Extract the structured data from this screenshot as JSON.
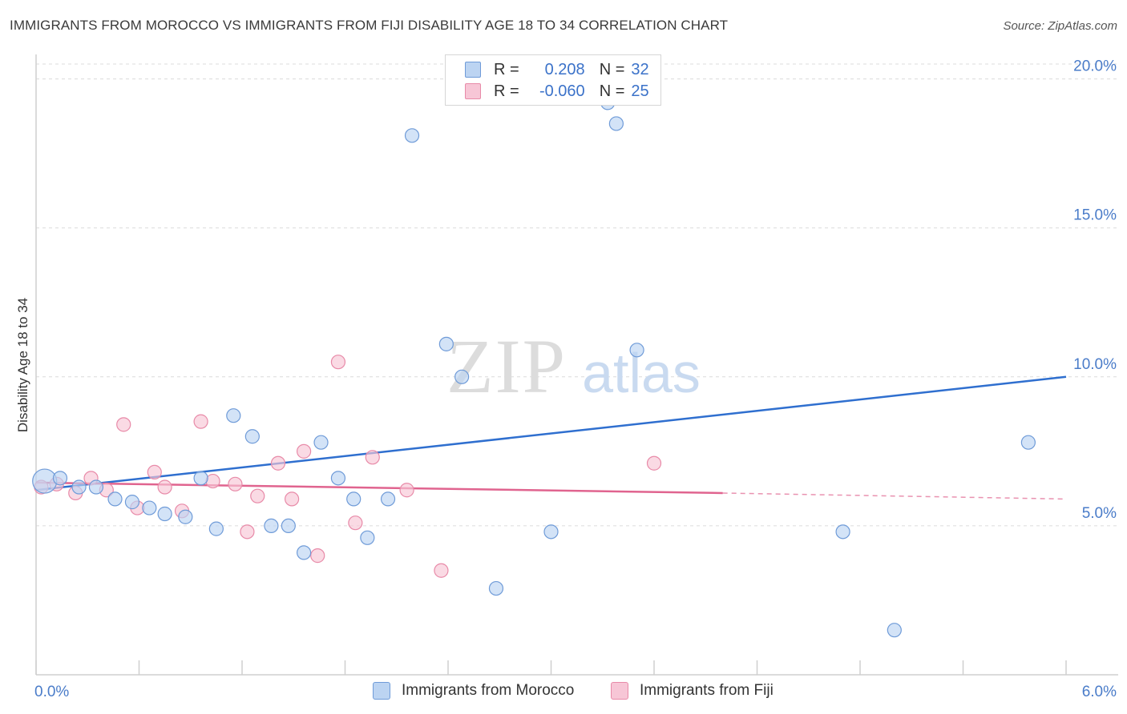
{
  "header": {
    "title": "IMMIGRANTS FROM MOROCCO VS IMMIGRANTS FROM FIJI DISABILITY AGE 18 TO 34 CORRELATION CHART",
    "source": "Source: ZipAtlas.com"
  },
  "legend_stats": {
    "r_label": "R =",
    "n_label": "N =",
    "morocco": {
      "r": "0.208",
      "n": "32"
    },
    "fiji": {
      "r": "-0.060",
      "n": "25"
    }
  },
  "watermark": {
    "zip": "ZIP",
    "atlas": "atlas"
  },
  "colors": {
    "morocco_fill": "#bcd4f2",
    "morocco_stroke": "#6f9bd8",
    "morocco_line": "#2f6fcf",
    "fiji_fill": "#f7c6d6",
    "fiji_stroke": "#e88aa8",
    "fiji_line": "#e0648f",
    "tick_text": "#4a7cc9",
    "grid": "#dcdcdc"
  },
  "chart_data": {
    "type": "scatter",
    "xlabel": "",
    "ylabel": "Disability Age 18 to 34",
    "xlim": [
      0,
      6
    ],
    "ylim": [
      0,
      20.5
    ],
    "x_tick_labels": [
      {
        "value": 0,
        "label": "0.0%"
      },
      {
        "value": 6,
        "label": "6.0%"
      }
    ],
    "y_tick_labels": [
      {
        "value": 5,
        "label": "5.0%"
      },
      {
        "value": 10,
        "label": "10.0%"
      },
      {
        "value": 15,
        "label": "15.0%"
      },
      {
        "value": 20,
        "label": "20.0%"
      }
    ],
    "grid": true,
    "series": [
      {
        "name": "Immigrants from Morocco",
        "points": [
          [
            0.05,
            6.5
          ],
          [
            0.14,
            6.6
          ],
          [
            0.25,
            6.3
          ],
          [
            0.35,
            6.3
          ],
          [
            0.46,
            5.9
          ],
          [
            0.56,
            5.8
          ],
          [
            0.66,
            5.6
          ],
          [
            0.75,
            5.4
          ],
          [
            0.87,
            5.3
          ],
          [
            0.96,
            6.6
          ],
          [
            1.05,
            4.9
          ],
          [
            1.15,
            8.7
          ],
          [
            1.26,
            8.0
          ],
          [
            1.37,
            5.0
          ],
          [
            1.47,
            5.0
          ],
          [
            1.56,
            4.1
          ],
          [
            1.66,
            7.8
          ],
          [
            1.76,
            6.6
          ],
          [
            1.85,
            5.9
          ],
          [
            1.93,
            4.6
          ],
          [
            2.05,
            5.9
          ],
          [
            2.19,
            18.1
          ],
          [
            2.39,
            11.1
          ],
          [
            2.48,
            10.0
          ],
          [
            2.68,
            2.9
          ],
          [
            3.0,
            4.8
          ],
          [
            3.33,
            19.2
          ],
          [
            3.38,
            18.5
          ],
          [
            3.5,
            10.9
          ],
          [
            4.7,
            4.8
          ],
          [
            5.0,
            1.5
          ],
          [
            5.78,
            7.8
          ]
        ],
        "trend": {
          "x": [
            0,
            6
          ],
          "y": [
            6.2,
            10.0
          ]
        }
      },
      {
        "name": "Immigrants from Fiji",
        "points": [
          [
            0.03,
            6.3
          ],
          [
            0.12,
            6.4
          ],
          [
            0.23,
            6.1
          ],
          [
            0.32,
            6.6
          ],
          [
            0.41,
            6.2
          ],
          [
            0.51,
            8.4
          ],
          [
            0.59,
            5.6
          ],
          [
            0.69,
            6.8
          ],
          [
            0.75,
            6.3
          ],
          [
            0.85,
            5.5
          ],
          [
            0.96,
            8.5
          ],
          [
            1.03,
            6.5
          ],
          [
            1.16,
            6.4
          ],
          [
            1.23,
            4.8
          ],
          [
            1.29,
            6.0
          ],
          [
            1.41,
            7.1
          ],
          [
            1.49,
            5.9
          ],
          [
            1.56,
            7.5
          ],
          [
            1.64,
            4.0
          ],
          [
            1.76,
            10.5
          ],
          [
            1.86,
            5.1
          ],
          [
            1.96,
            7.3
          ],
          [
            2.16,
            6.2
          ],
          [
            2.36,
            3.5
          ],
          [
            3.6,
            7.1
          ]
        ],
        "trend": {
          "x": [
            0,
            4.0
          ],
          "y": [
            6.45,
            6.1
          ]
        },
        "trend_dashed": {
          "x": [
            4.0,
            6
          ],
          "y": [
            6.1,
            5.9
          ]
        }
      }
    ]
  },
  "bottom_legend": {
    "morocco": "Immigrants from Morocco",
    "fiji": "Immigrants from Fiji"
  }
}
